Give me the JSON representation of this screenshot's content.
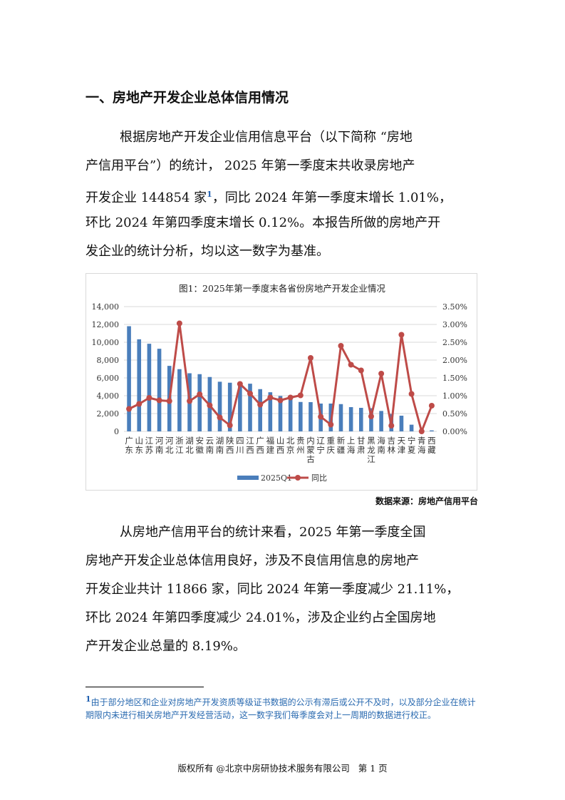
{
  "heading": "一、房地产开发企业总体信用情况",
  "paragraph1": {
    "lines": [
      "根据房地产开发企业信用信息平台（以下简称 “房地",
      "产信用平台”）的统计， 2025 年第一季度末共收录房地产",
      "开发企业 144854 家",
      "，同比 2024 年第一季度末增长 1.01%，",
      "环比 2024 年第四季度末增长 0.12%。本报告所做的房地产开",
      "发企业的统计分析，均以这一数字为基准。"
    ],
    "footnote_ref": "1"
  },
  "chart_data": {
    "type": "bar+line",
    "title": "图1：2025年第一季度末各省份房地产开发企业情况",
    "categories": [
      "广东",
      "山东",
      "江苏",
      "河南",
      "河北",
      "浙江",
      "湖北",
      "安徽",
      "云南",
      "湖南",
      "陕西",
      "四川",
      "江西",
      "广西",
      "福建",
      "山西",
      "北京",
      "贵州",
      "内蒙古",
      "辽宁",
      "重庆",
      "新疆",
      "上海",
      "甘肃",
      "黑龙江",
      "海南",
      "吉林",
      "天津",
      "宁夏",
      "青海",
      "西藏"
    ],
    "series": [
      {
        "name": "2025Q1",
        "type": "bar",
        "axis": "left",
        "color": "#4a7ebb",
        "values": [
          11800,
          10330,
          9830,
          9270,
          7350,
          6980,
          6520,
          6420,
          6100,
          5570,
          5460,
          5400,
          5350,
          4740,
          4390,
          3970,
          3940,
          3300,
          3280,
          3120,
          3120,
          3060,
          2720,
          2640,
          2600,
          2290,
          1950,
          1760,
          750,
          30,
          110
        ]
      },
      {
        "name": "同比",
        "type": "line",
        "axis": "right",
        "color": "#be4b48",
        "unit": "%",
        "values": [
          0.63,
          0.77,
          0.94,
          0.87,
          0.85,
          3.03,
          0.85,
          1.04,
          0.73,
          0.39,
          0.17,
          1.33,
          1.06,
          0.75,
          0.95,
          0.87,
          0.95,
          1.01,
          2.06,
          0.41,
          0.19,
          2.4,
          1.87,
          1.71,
          0.42,
          1.62,
          0.16,
          2.71,
          1.05,
          0.0,
          0.72
        ]
      }
    ],
    "left_axis": {
      "min": 0,
      "max": 14000,
      "ticks": [
        "0",
        "2,000",
        "4,000",
        "6,000",
        "8,000",
        "10,000",
        "12,000",
        "14,000"
      ]
    },
    "right_axis": {
      "min": 0,
      "max": 3.5,
      "ticks": [
        "0.00%",
        "0.50%",
        "1.00%",
        "1.50%",
        "2.00%",
        "2.50%",
        "3.00%",
        "3.50%"
      ]
    },
    "grid": true,
    "legend": "bottom"
  },
  "source": "数据来源：房地产信用平台",
  "paragraph2": {
    "lines": [
      "从房地产信用平台的统计来看，2025 年第一季度全国",
      "房地产开发企业总体信用良好，涉及不良信用信息的房地产",
      "开发企业共计 11866 家，同比 2024 年第一季度减少 21.11%，",
      "环比 2024 年第四季度减少 24.01%，涉及企业约占全国房地",
      "产开发企业总量的 8.19%。"
    ]
  },
  "footnote": {
    "marker": "1",
    "text": "由于部分地区和企业对房地产开发资质等级证书数据的公示有滞后或公开不及时，以及部分企业在统计期限内未进行相关房地产开发经营活动，这一数字我们每季度会对上一周期的数据进行校正。"
  },
  "footer": "版权所有 @北京中房研协技术服务有限公司   第 1 页"
}
